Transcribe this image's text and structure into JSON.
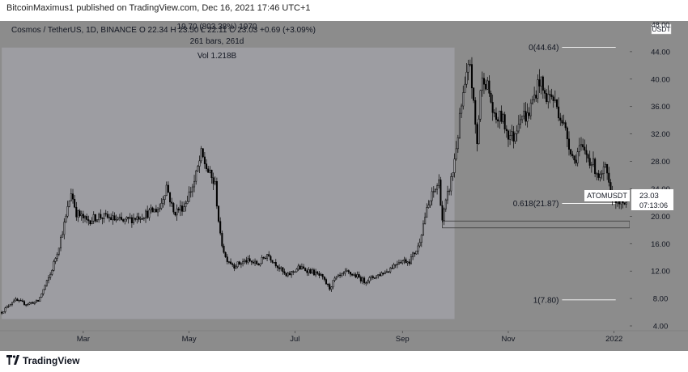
{
  "header": {
    "published": "BitcoinMaximus1 published on TradingView.com, Dec 16, 2021 17:46 UTC+1"
  },
  "legend": {
    "symbol": "Cosmos / TetherUS, 1D, BINANCE",
    "ohlc": "O 22.34 H 23.50 L 22.11 C 23.03 +0.69 (+3.09%)",
    "range_stats": "19.70 (803.38%) 1970",
    "range_bars": "261 bars, 261d",
    "range_vol": "Vol 1.218B"
  },
  "price_axis": {
    "currency": "USDT",
    "top_tick": "48.00"
  },
  "price_tag": {
    "symbol": "ATOMUSDT",
    "price": "23.03",
    "countdown": "07:13:06"
  },
  "footer": {
    "brand": "TradingView"
  },
  "colors": {
    "background": "#8c8c8c",
    "range_shade": "#9d9da2",
    "candle": "#000000",
    "fib_line": "#ffffff",
    "text": "#131722",
    "price_tag_bg": "#ffffff",
    "logo_icon": "tradingview-logo"
  },
  "chart_data": {
    "type": "candlestick",
    "title": "Cosmos / TetherUS, 1D, BINANCE",
    "ylim": [
      4,
      48
    ],
    "y_ticks": [
      4,
      8,
      12,
      16,
      20,
      24,
      28,
      32,
      36,
      40,
      44
    ],
    "y_tick_labels": [
      "4.00",
      "8.00",
      "12.00",
      "16.00",
      "20.00",
      "24.00",
      "28.00",
      "32.00",
      "36.00",
      "40.00",
      "44.00"
    ],
    "x_ticks": [
      "Mar",
      "May",
      "Jul",
      "Sep",
      "Nov",
      "2022"
    ],
    "x_tick_dates": [
      "2021-03-01",
      "2021-05-01",
      "2021-07-01",
      "2021-09-01",
      "2021-11-01",
      "2022-01-01"
    ],
    "xlim": [
      "2021-01-12",
      "2022-01-10"
    ],
    "ohlc_last": {
      "open": 22.34,
      "high": 23.5,
      "low": 22.11,
      "close": 23.03,
      "change": 0.69,
      "change_pct": 3.09
    },
    "fib_levels": [
      {
        "label": "0(44.64)",
        "value": 44.64
      },
      {
        "label": "0.618(21.87)",
        "value": 21.87
      },
      {
        "label": "1(7.80)",
        "value": 7.8
      }
    ],
    "support_zone": {
      "low": 18.3,
      "high": 19.3
    },
    "measure_range": {
      "start": "2021-01-13",
      "end": "2021-10-01",
      "low": 5.0,
      "high": 44.6
    },
    "price_path": [
      [
        "2021-01-13",
        6.0
      ],
      [
        "2021-01-20",
        7.8
      ],
      [
        "2021-01-27",
        7.2
      ],
      [
        "2021-02-03",
        7.6
      ],
      [
        "2021-02-10",
        11.5
      ],
      [
        "2021-02-14",
        14.8
      ],
      [
        "2021-02-19",
        19.8
      ],
      [
        "2021-02-22",
        23.6
      ],
      [
        "2021-02-25",
        20.5
      ],
      [
        "2021-03-03",
        19.3
      ],
      [
        "2021-03-10",
        20.0
      ],
      [
        "2021-03-17",
        19.7
      ],
      [
        "2021-03-24",
        19.2
      ],
      [
        "2021-03-31",
        19.8
      ],
      [
        "2021-04-07",
        20.4
      ],
      [
        "2021-04-14",
        21.2
      ],
      [
        "2021-04-18",
        24.5
      ],
      [
        "2021-04-22",
        20.5
      ],
      [
        "2021-04-28",
        21.5
      ],
      [
        "2021-05-04",
        25.0
      ],
      [
        "2021-05-08",
        29.0
      ],
      [
        "2021-05-12",
        26.5
      ],
      [
        "2021-05-16",
        24.5
      ],
      [
        "2021-05-19",
        17.0
      ],
      [
        "2021-05-22",
        14.0
      ],
      [
        "2021-05-27",
        12.8
      ],
      [
        "2021-06-03",
        13.5
      ],
      [
        "2021-06-10",
        13.0
      ],
      [
        "2021-06-15",
        14.5
      ],
      [
        "2021-06-21",
        12.8
      ],
      [
        "2021-06-26",
        11.2
      ],
      [
        "2021-07-03",
        12.5
      ],
      [
        "2021-07-10",
        12.0
      ],
      [
        "2021-07-16",
        11.2
      ],
      [
        "2021-07-21",
        9.5
      ],
      [
        "2021-07-24",
        10.8
      ],
      [
        "2021-07-31",
        11.8
      ],
      [
        "2021-08-06",
        11.2
      ],
      [
        "2021-08-10",
        10.5
      ],
      [
        "2021-08-16",
        11.2
      ],
      [
        "2021-08-23",
        12.0
      ],
      [
        "2021-08-30",
        13.5
      ],
      [
        "2021-09-05",
        13.5
      ],
      [
        "2021-09-10",
        15.5
      ],
      [
        "2021-09-14",
        20.0
      ],
      [
        "2021-09-18",
        23.0
      ],
      [
        "2021-09-22",
        25.0
      ],
      [
        "2021-09-24",
        19.5
      ],
      [
        "2021-09-27",
        23.0
      ],
      [
        "2021-09-30",
        26.5
      ],
      [
        "2021-10-03",
        32.0
      ],
      [
        "2021-10-05",
        36.0
      ],
      [
        "2021-10-08",
        40.0
      ],
      [
        "2021-10-10",
        42.5
      ],
      [
        "2021-10-12",
        36.0
      ],
      [
        "2021-10-14",
        30.5
      ],
      [
        "2021-10-16",
        38.5
      ],
      [
        "2021-10-18",
        40.5
      ],
      [
        "2021-10-21",
        38.0
      ],
      [
        "2021-10-24",
        34.0
      ],
      [
        "2021-10-28",
        34.5
      ],
      [
        "2021-11-01",
        32.0
      ],
      [
        "2021-11-04",
        31.5
      ],
      [
        "2021-11-08",
        35.0
      ],
      [
        "2021-11-12",
        34.5
      ],
      [
        "2021-11-16",
        37.5
      ],
      [
        "2021-11-19",
        40.0
      ],
      [
        "2021-11-22",
        37.5
      ],
      [
        "2021-11-26",
        37.5
      ],
      [
        "2021-11-29",
        36.0
      ],
      [
        "2021-12-02",
        34.0
      ],
      [
        "2021-12-05",
        31.5
      ],
      [
        "2021-12-09",
        28.0
      ],
      [
        "2021-12-12",
        30.0
      ],
      [
        "2021-12-16",
        29.0
      ],
      [
        "2021-12-20",
        27.5
      ],
      [
        "2021-12-24",
        25.5
      ],
      [
        "2021-12-27",
        27.0
      ],
      [
        "2021-12-30",
        23.0
      ],
      [
        "2022-01-03",
        22.5
      ],
      [
        "2022-01-06",
        21.5
      ],
      [
        "2022-01-09",
        22.34
      ]
    ]
  }
}
